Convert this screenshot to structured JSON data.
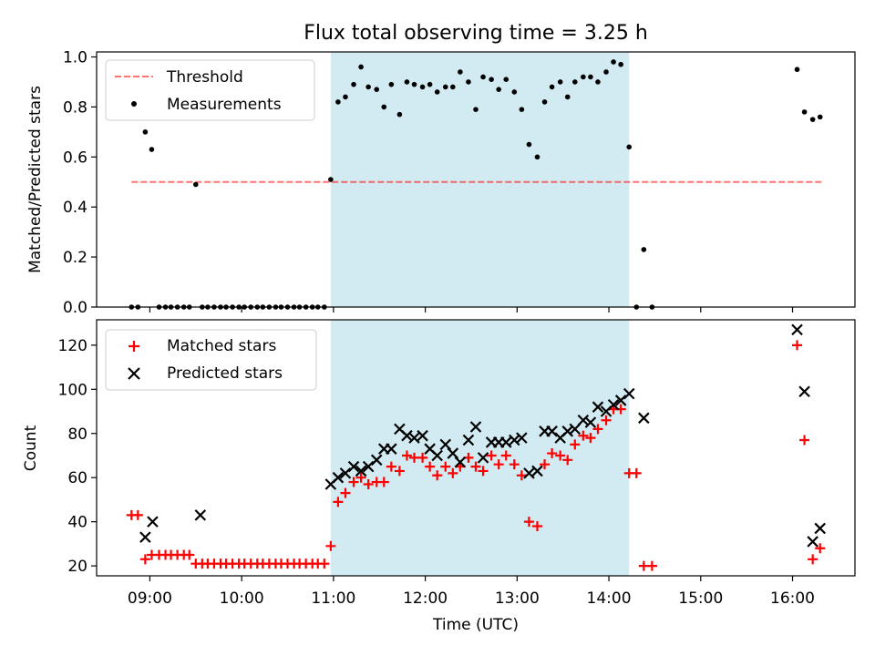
{
  "title": "Flux total observing time = 3.25 h",
  "colors": {
    "shade": "#add8e6",
    "threshold": "#ff0000",
    "measurements": "#000000",
    "matched": "#ff0000",
    "predicted": "#000000"
  },
  "chart_data": [
    {
      "type": "scatter",
      "panel": "top",
      "ylabel": "Matched/Predicted stars",
      "xlabel": "",
      "xlim": [
        8.42,
        16.68
      ],
      "ylim": [
        0.0,
        1.02
      ],
      "yticks": [
        0.0,
        0.2,
        0.4,
        0.6,
        0.8,
        1.0
      ],
      "ytick_labels": [
        "0.0",
        "0.2",
        "0.4",
        "0.6",
        "0.8",
        "1.0"
      ],
      "xticks": [
        9,
        10,
        11,
        12,
        13,
        14,
        15,
        16
      ],
      "shaded_interval": [
        10.97,
        14.22
      ],
      "legend": {
        "location": "upper left",
        "threshold_label": "Threshold",
        "measurements_label": "Measurements"
      },
      "threshold": {
        "value": 0.5,
        "x_range": [
          8.8,
          16.33
        ]
      },
      "measurements": {
        "x": [
          8.8,
          8.87,
          8.95,
          9.02,
          9.1,
          9.17,
          9.23,
          9.3,
          9.37,
          9.43,
          9.5,
          9.57,
          9.63,
          9.7,
          9.77,
          9.83,
          9.9,
          9.97,
          10.03,
          10.1,
          10.17,
          10.23,
          10.3,
          10.37,
          10.43,
          10.5,
          10.57,
          10.63,
          10.7,
          10.77,
          10.83,
          10.9,
          10.97,
          11.05,
          11.13,
          11.22,
          11.3,
          11.38,
          11.47,
          11.55,
          11.63,
          11.72,
          11.8,
          11.88,
          11.97,
          12.05,
          12.13,
          12.22,
          12.3,
          12.38,
          12.47,
          12.55,
          12.63,
          12.72,
          12.8,
          12.88,
          12.97,
          13.05,
          13.13,
          13.22,
          13.3,
          13.38,
          13.47,
          13.55,
          13.63,
          13.72,
          13.8,
          13.88,
          13.97,
          14.05,
          14.13,
          14.22,
          14.3,
          14.38,
          14.47,
          16.05,
          16.13,
          16.22,
          16.3
        ],
        "y": [
          0.0,
          0.0,
          0.7,
          0.63,
          0.0,
          0.0,
          0.0,
          0.0,
          0.0,
          0.0,
          0.49,
          0.0,
          0.0,
          0.0,
          0.0,
          0.0,
          0.0,
          0.0,
          0.0,
          0.0,
          0.0,
          0.0,
          0.0,
          0.0,
          0.0,
          0.0,
          0.0,
          0.0,
          0.0,
          0.0,
          0.0,
          0.0,
          0.51,
          0.82,
          0.84,
          0.89,
          0.96,
          0.88,
          0.87,
          0.8,
          0.89,
          0.77,
          0.9,
          0.89,
          0.88,
          0.89,
          0.86,
          0.88,
          0.88,
          0.94,
          0.9,
          0.79,
          0.92,
          0.91,
          0.87,
          0.91,
          0.86,
          0.79,
          0.65,
          0.6,
          0.82,
          0.88,
          0.9,
          0.84,
          0.9,
          0.92,
          0.92,
          0.9,
          0.94,
          0.98,
          0.97,
          0.64,
          0.0,
          0.23,
          0.0,
          0.95,
          0.78,
          0.75,
          0.76
        ]
      }
    },
    {
      "type": "scatter",
      "panel": "bottom",
      "ylabel": "Count",
      "xlabel": "Time (UTC)",
      "xlim": [
        8.42,
        16.68
      ],
      "ylim": [
        15.5,
        131.5
      ],
      "yticks": [
        20,
        40,
        60,
        80,
        100,
        120
      ],
      "ytick_labels": [
        "20",
        "40",
        "60",
        "80",
        "100",
        "120"
      ],
      "xticks": [
        9,
        10,
        11,
        12,
        13,
        14,
        15,
        16
      ],
      "xtick_labels": [
        "09:00",
        "10:00",
        "11:00",
        "12:00",
        "13:00",
        "14:00",
        "15:00",
        "16:00"
      ],
      "shaded_interval": [
        10.97,
        14.22
      ],
      "legend": {
        "location": "upper left",
        "matched_label": "Matched stars",
        "predicted_label": "Predicted stars"
      },
      "matched": {
        "x": [
          8.8,
          8.87,
          8.95,
          9.02,
          9.1,
          9.17,
          9.23,
          9.3,
          9.37,
          9.43,
          9.5,
          9.57,
          9.63,
          9.7,
          9.77,
          9.83,
          9.9,
          9.97,
          10.03,
          10.1,
          10.17,
          10.23,
          10.3,
          10.37,
          10.43,
          10.5,
          10.57,
          10.63,
          10.7,
          10.77,
          10.83,
          10.9,
          10.97,
          11.05,
          11.13,
          11.22,
          11.3,
          11.38,
          11.47,
          11.55,
          11.63,
          11.72,
          11.8,
          11.88,
          11.97,
          12.05,
          12.13,
          12.22,
          12.3,
          12.38,
          12.47,
          12.55,
          12.63,
          12.72,
          12.8,
          12.88,
          12.97,
          13.05,
          13.13,
          13.22,
          13.3,
          13.38,
          13.47,
          13.55,
          13.63,
          13.72,
          13.8,
          13.88,
          13.97,
          14.05,
          14.13,
          14.22,
          14.3,
          14.38,
          14.47,
          16.05,
          16.13,
          16.22,
          16.3
        ],
        "y": [
          43,
          43,
          23,
          25,
          25,
          25,
          25,
          25,
          25,
          25,
          21,
          21,
          21,
          21,
          21,
          21,
          21,
          21,
          21,
          21,
          21,
          21,
          21,
          21,
          21,
          21,
          21,
          21,
          21,
          21,
          21,
          21,
          29,
          49,
          53,
          58,
          60,
          57,
          58,
          58,
          65,
          63,
          70,
          69,
          69,
          65,
          61,
          65,
          62,
          65,
          69,
          65,
          63,
          70,
          66,
          70,
          66,
          61,
          40,
          38,
          66,
          71,
          70,
          68,
          75,
          79,
          78,
          82,
          86,
          91,
          91,
          62,
          62,
          20,
          20,
          120,
          77,
          23,
          28
        ]
      },
      "predicted": {
        "x": [
          8.95,
          9.03,
          9.55,
          10.97,
          11.05,
          11.13,
          11.22,
          11.3,
          11.38,
          11.47,
          11.55,
          11.63,
          11.72,
          11.8,
          11.88,
          11.97,
          12.05,
          12.13,
          12.22,
          12.3,
          12.38,
          12.47,
          12.55,
          12.63,
          12.72,
          12.8,
          12.88,
          12.97,
          13.05,
          13.13,
          13.22,
          13.3,
          13.38,
          13.47,
          13.55,
          13.63,
          13.72,
          13.8,
          13.88,
          13.97,
          14.05,
          14.13,
          14.22,
          14.38,
          16.05,
          16.13,
          16.22,
          16.3
        ],
        "y": [
          33,
          40,
          43,
          57,
          60,
          62,
          65,
          63,
          65,
          68,
          73,
          73,
          82,
          79,
          78,
          79,
          73,
          70,
          75,
          71,
          67,
          77,
          83,
          69,
          76,
          76,
          76,
          77,
          78,
          62,
          63,
          81,
          81,
          78,
          81,
          82,
          86,
          85,
          92,
          90,
          93,
          95,
          98,
          87,
          127,
          99,
          31,
          37
        ]
      }
    }
  ]
}
